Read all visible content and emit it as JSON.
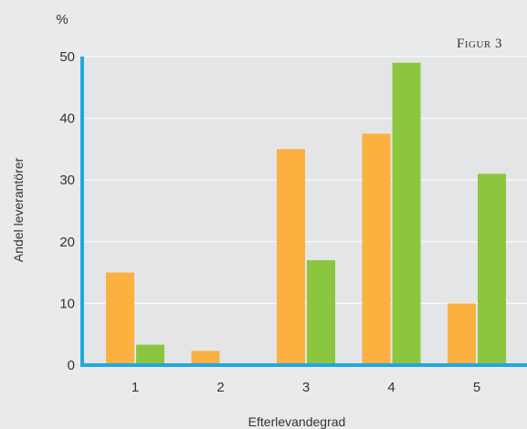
{
  "chart_data": {
    "type": "bar",
    "figure_label": "Figur 3",
    "unit": "%",
    "ylabel": "Andel leverantörer",
    "xlabel": "Efterlevandegrad",
    "categories": [
      "1",
      "2",
      "3",
      "4",
      "5"
    ],
    "series": [
      {
        "color": "#fbb040",
        "values": [
          15,
          2.3,
          35,
          37.5,
          10
        ]
      },
      {
        "color": "#8cc63f",
        "values": [
          3.3,
          0,
          17,
          49,
          31
        ]
      }
    ],
    "ylim": [
      0,
      50
    ],
    "yticks": [
      "0",
      "10",
      "20",
      "30",
      "40",
      "50"
    ],
    "grid": true,
    "axis_color": "#1fa8e0",
    "plot_background": "#e9eaec"
  }
}
